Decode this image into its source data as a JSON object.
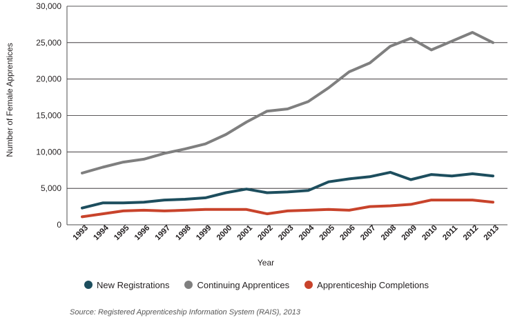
{
  "chart_data": {
    "type": "line",
    "title": "",
    "xlabel": "Year",
    "ylabel": "Number of Female Apprentices",
    "ylim": [
      0,
      30000
    ],
    "yticks": [
      0,
      5000,
      10000,
      15000,
      20000,
      25000,
      30000
    ],
    "ytick_labels": [
      "0",
      "5,000",
      "10,000",
      "15,000",
      "20,000",
      "25,000",
      "30,000"
    ],
    "grid": true,
    "legend_position": "bottom",
    "categories": [
      "1993",
      "1994",
      "1995",
      "1996",
      "1997",
      "1998",
      "1999",
      "2000",
      "2001",
      "2002",
      "2003",
      "2004",
      "2005",
      "2006",
      "2007",
      "2008",
      "2009",
      "2010",
      "2011",
      "2012",
      "2013"
    ],
    "series": [
      {
        "name": "New Registrations",
        "color": "#1d4e5e",
        "values": [
          2300,
          3000,
          3000,
          3100,
          3400,
          3500,
          3700,
          4400,
          4900,
          4400,
          4500,
          4700,
          5900,
          6300,
          6600,
          7200,
          6200,
          6900,
          6700,
          7000,
          6700
        ]
      },
      {
        "name": "Continuing Apprentices",
        "color": "#7f7f7f",
        "values": [
          7100,
          7900,
          8600,
          9000,
          9800,
          10400,
          11100,
          12400,
          14100,
          15600,
          15900,
          16900,
          18800,
          21000,
          22200,
          24500,
          25600,
          24000,
          25200,
          26400,
          25000
        ]
      },
      {
        "name": "Apprenticeship Completions",
        "color": "#c8432b",
        "values": [
          1100,
          1500,
          1900,
          2000,
          1900,
          2000,
          2100,
          2100,
          2100,
          1500,
          1900,
          2000,
          2100,
          2000,
          2500,
          2600,
          2800,
          3400,
          3400,
          3400,
          3100
        ]
      }
    ]
  },
  "footer": {
    "source": "Source: Registered Apprenticeship Information System (RAIS), 2013"
  }
}
